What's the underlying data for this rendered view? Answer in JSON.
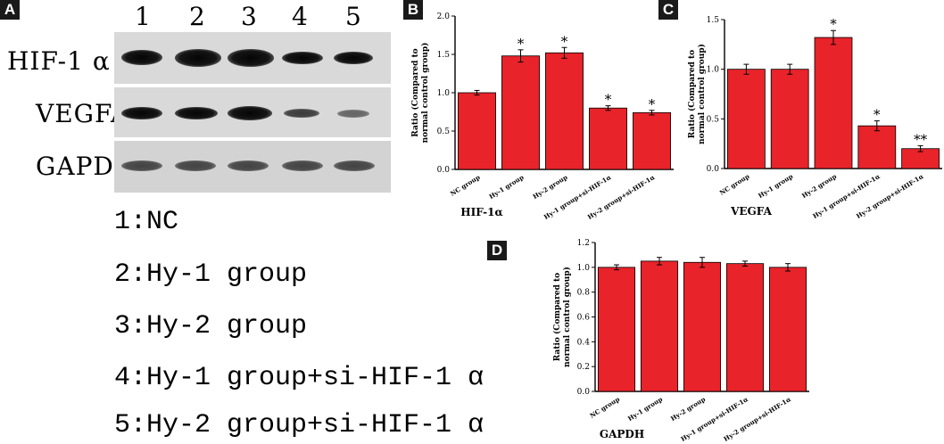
{
  "panels": {
    "a": "A",
    "b": "B",
    "c": "C",
    "d": "D"
  },
  "blot": {
    "lanes": [
      "1",
      "2",
      "3",
      "4",
      "5"
    ],
    "rows": [
      {
        "label": "HIF-1 α",
        "intensity": [
          0.85,
          1.0,
          1.0,
          0.65,
          0.6
        ]
      },
      {
        "label": "VEGFA",
        "intensity": [
          0.8,
          0.82,
          0.9,
          0.45,
          0.3
        ]
      },
      {
        "label": "GAPDH",
        "intensity": [
          0.55,
          0.55,
          0.55,
          0.55,
          0.55
        ]
      }
    ],
    "legend": [
      "1:NC",
      "2:Hy-1 group",
      "3:Hy-2 group",
      "4:Hy-1 group+si-HIF-1 α",
      "5:Hy-2 group+si-HIF-1 α"
    ]
  },
  "chart_data": [
    {
      "type": "bar",
      "panel": "B",
      "categories": [
        "NC group",
        "Hy-1 group",
        "Hy-2 group",
        "Hy-1 group+si-HIF-1α",
        "Hy-2 group+si-HIF-1α"
      ],
      "values": [
        1.0,
        1.48,
        1.52,
        0.8,
        0.74
      ],
      "errors": [
        0.03,
        0.08,
        0.07,
        0.03,
        0.03
      ],
      "annotations": [
        "",
        "*",
        "*",
        "*",
        "*"
      ],
      "ylim": [
        0.0,
        2.0
      ],
      "yticks": [
        "0.0",
        "0.5",
        "1.0",
        "1.5",
        "2.0"
      ],
      "ylabel": "Ratio (Compared to normal control group)",
      "xlabel": "HIF-1α",
      "bar_color": "#e8232a"
    },
    {
      "type": "bar",
      "panel": "C",
      "categories": [
        "NC group",
        "Hy-1 group",
        "Hy-2 group",
        "Hy-1 group+si-HIF-1α",
        "Hy-2 group+si-HIF-1α"
      ],
      "values": [
        1.0,
        1.0,
        1.32,
        0.43,
        0.2
      ],
      "errors": [
        0.05,
        0.05,
        0.07,
        0.05,
        0.03
      ],
      "annotations": [
        "",
        "",
        "*",
        "*",
        "**"
      ],
      "ylim": [
        0.0,
        1.5
      ],
      "yticks": [
        "0.0",
        "0.5",
        "1.0",
        "1.5"
      ],
      "ylabel": "Ratio (Compared to normal control group)",
      "xlabel": "VEGFA",
      "bar_color": "#e8232a"
    },
    {
      "type": "bar",
      "panel": "D",
      "categories": [
        "NC group",
        "Hy-1 group",
        "Hy-2 group",
        "Hy-1 group+si-HIF-1α",
        "Hy-2 group+si-HIF-1α"
      ],
      "values": [
        1.0,
        1.05,
        1.04,
        1.03,
        1.0
      ],
      "errors": [
        0.02,
        0.03,
        0.04,
        0.02,
        0.03
      ],
      "annotations": [
        "",
        "",
        "",
        "",
        ""
      ],
      "ylim": [
        0.0,
        1.2
      ],
      "yticks": [
        "0.0",
        "0.2",
        "0.4",
        "0.6",
        "0.8",
        "1.0",
        "1.2"
      ],
      "ylabel": "Ratio (Compared to normal control group)",
      "xlabel": "GAPDH",
      "bar_color": "#e8232a"
    }
  ]
}
